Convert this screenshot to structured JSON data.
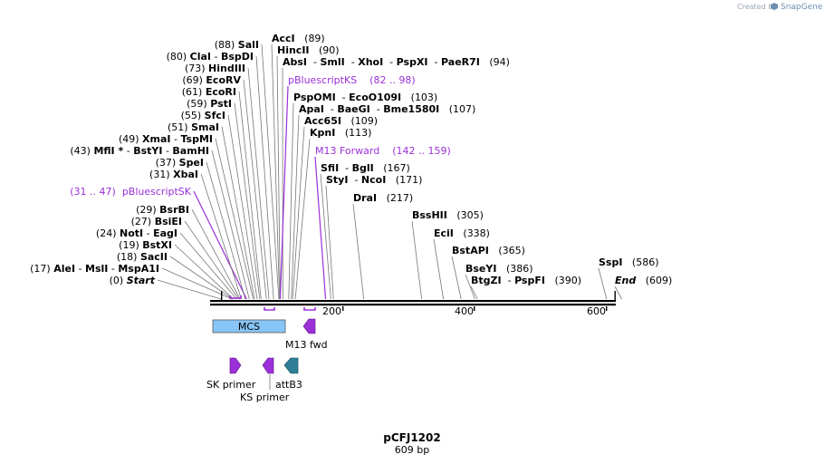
{
  "branding": {
    "created_by": "Created by",
    "app": "SnapGene"
  },
  "plasmid": {
    "name": "pCFJ1202",
    "length_label": "609 bp"
  },
  "colors": {
    "site_line": "#777777",
    "primer_purple": "#9b30d9",
    "mcs_fill": "#88c5f7",
    "attb_teal": "#2e7f97",
    "backbone": "#000000"
  },
  "ruler_ticks": [
    "200",
    "400",
    "600"
  ],
  "labels": [
    {
      "id": "l0",
      "pos": 0,
      "parts": [
        {
          "t": "(0) ",
          "s": "n"
        },
        {
          "t": "Start",
          "s": "bi"
        }
      ]
    },
    {
      "id": "l1",
      "pos": 17,
      "parts": [
        {
          "t": "(17) ",
          "s": "n"
        },
        {
          "t": "AleI",
          "s": "b"
        },
        {
          "t": " - ",
          "s": "n"
        },
        {
          "t": "MslI",
          "s": "b"
        },
        {
          "t": " - ",
          "s": "n"
        },
        {
          "t": "MspA1I",
          "s": "b"
        }
      ]
    },
    {
      "id": "l2",
      "pos": 18,
      "parts": [
        {
          "t": "(18) ",
          "s": "n"
        },
        {
          "t": "SacII",
          "s": "b"
        }
      ]
    },
    {
      "id": "l3",
      "pos": 19,
      "parts": [
        {
          "t": "(19) ",
          "s": "n"
        },
        {
          "t": "BstXI",
          "s": "b"
        }
      ]
    },
    {
      "id": "l4",
      "pos": 24,
      "parts": [
        {
          "t": "(24) ",
          "s": "n"
        },
        {
          "t": "NotI",
          "s": "b"
        },
        {
          "t": " - ",
          "s": "n"
        },
        {
          "t": "EagI",
          "s": "b"
        }
      ]
    },
    {
      "id": "l5",
      "pos": 27,
      "parts": [
        {
          "t": "(27) ",
          "s": "n"
        },
        {
          "t": "BsiEI",
          "s": "b"
        }
      ]
    },
    {
      "id": "l6",
      "pos": 29,
      "parts": [
        {
          "t": "(29) ",
          "s": "n"
        },
        {
          "t": "BsrBI",
          "s": "b"
        }
      ]
    },
    {
      "id": "l7",
      "pos": 39,
      "purple": true,
      "parts": [
        {
          "t": "(31 .. 47)  pBluescriptSK",
          "s": "p"
        }
      ]
    },
    {
      "id": "l8",
      "pos": 31,
      "parts": [
        {
          "t": "(31) ",
          "s": "n"
        },
        {
          "t": "XbaI",
          "s": "b"
        }
      ]
    },
    {
      "id": "l9",
      "pos": 37,
      "parts": [
        {
          "t": "(37) ",
          "s": "n"
        },
        {
          "t": "SpeI",
          "s": "b"
        }
      ]
    },
    {
      "id": "l10",
      "pos": 43,
      "parts": [
        {
          "t": "(43) ",
          "s": "n"
        },
        {
          "t": "MflI *",
          "s": "b"
        },
        {
          "t": " - ",
          "s": "n"
        },
        {
          "t": "BstYI",
          "s": "b"
        },
        {
          "t": " - ",
          "s": "n"
        },
        {
          "t": "BamHI",
          "s": "b"
        }
      ]
    },
    {
      "id": "l11",
      "pos": 49,
      "parts": [
        {
          "t": "(49) ",
          "s": "n"
        },
        {
          "t": "XmaI",
          "s": "b"
        },
        {
          "t": " - ",
          "s": "n"
        },
        {
          "t": "TspMI",
          "s": "b"
        }
      ]
    },
    {
      "id": "l12",
      "pos": 51,
      "parts": [
        {
          "t": "(51) ",
          "s": "n"
        },
        {
          "t": "SmaI",
          "s": "b"
        }
      ]
    },
    {
      "id": "l13",
      "pos": 55,
      "parts": [
        {
          "t": "(55) ",
          "s": "n"
        },
        {
          "t": "SfcI",
          "s": "b"
        }
      ]
    },
    {
      "id": "l14",
      "pos": 59,
      "parts": [
        {
          "t": "(59) ",
          "s": "n"
        },
        {
          "t": "PstI",
          "s": "b"
        }
      ]
    },
    {
      "id": "l15",
      "pos": 61,
      "parts": [
        {
          "t": "(61) ",
          "s": "n"
        },
        {
          "t": "EcoRI",
          "s": "b"
        }
      ]
    },
    {
      "id": "l16",
      "pos": 69,
      "parts": [
        {
          "t": "(69) ",
          "s": "n"
        },
        {
          "t": "EcoRV",
          "s": "b"
        }
      ]
    },
    {
      "id": "l17",
      "pos": 73,
      "parts": [
        {
          "t": "(73) ",
          "s": "n"
        },
        {
          "t": "HindIII",
          "s": "b"
        }
      ]
    },
    {
      "id": "l18",
      "pos": 80,
      "parts": [
        {
          "t": "(80) ",
          "s": "n"
        },
        {
          "t": "ClaI",
          "s": "b"
        },
        {
          "t": " - ",
          "s": "n"
        },
        {
          "t": "BspDI",
          "s": "b"
        }
      ]
    },
    {
      "id": "l19",
      "pos": 88,
      "parts": [
        {
          "t": "(88) ",
          "s": "n"
        },
        {
          "t": "SalI",
          "s": "b"
        }
      ]
    },
    {
      "id": "l20",
      "pos": 89,
      "parts": [
        {
          "t": "AccI",
          "s": "b"
        },
        {
          "t": "   (89)",
          "s": "n"
        }
      ]
    },
    {
      "id": "l21",
      "pos": 90,
      "parts": [
        {
          "t": "HincII",
          "s": "b"
        },
        {
          "t": "   (90)",
          "s": "n"
        }
      ]
    },
    {
      "id": "l22",
      "pos": 94,
      "parts": [
        {
          "t": "AbsI",
          "s": "b"
        },
        {
          "t": "  - ",
          "s": "n"
        },
        {
          "t": "SmlI",
          "s": "b"
        },
        {
          "t": "  - ",
          "s": "n"
        },
        {
          "t": "XhoI",
          "s": "b"
        },
        {
          "t": "  - ",
          "s": "n"
        },
        {
          "t": "PspXI",
          "s": "b"
        },
        {
          "t": "  - ",
          "s": "n"
        },
        {
          "t": "PaeR7I",
          "s": "b"
        },
        {
          "t": "   (94)",
          "s": "n"
        }
      ]
    },
    {
      "id": "l23",
      "pos": 90,
      "purple": true,
      "parts": [
        {
          "t": "pBluescriptKS    (82 .. 98)",
          "s": "p"
        }
      ]
    },
    {
      "id": "l24",
      "pos": 103,
      "parts": [
        {
          "t": "PspOMI",
          "s": "b"
        },
        {
          "t": "  - ",
          "s": "n"
        },
        {
          "t": "EcoO109I",
          "s": "b"
        },
        {
          "t": "   (103)",
          "s": "n"
        }
      ]
    },
    {
      "id": "l25",
      "pos": 107,
      "parts": [
        {
          "t": "ApaI",
          "s": "b"
        },
        {
          "t": "  - ",
          "s": "n"
        },
        {
          "t": "BaeGI",
          "s": "b"
        },
        {
          "t": "  - ",
          "s": "n"
        },
        {
          "t": "Bme1580I",
          "s": "b"
        },
        {
          "t": "   (107)",
          "s": "n"
        }
      ]
    },
    {
      "id": "l26",
      "pos": 109,
      "parts": [
        {
          "t": "Acc65I",
          "s": "b"
        },
        {
          "t": "   (109)",
          "s": "n"
        }
      ]
    },
    {
      "id": "l27",
      "pos": 113,
      "parts": [
        {
          "t": "KpnI",
          "s": "b"
        },
        {
          "t": "   (113)",
          "s": "n"
        }
      ]
    },
    {
      "id": "l28",
      "pos": 159,
      "purple": true,
      "parts": [
        {
          "t": "M13 Forward    (142 .. 159)",
          "s": "p"
        }
      ]
    },
    {
      "id": "l29",
      "pos": 167,
      "parts": [
        {
          "t": "SfiI",
          "s": "b"
        },
        {
          "t": "  - ",
          "s": "n"
        },
        {
          "t": "BglI",
          "s": "b"
        },
        {
          "t": "   (167)",
          "s": "n"
        }
      ]
    },
    {
      "id": "l30",
      "pos": 171,
      "parts": [
        {
          "t": "StyI",
          "s": "b"
        },
        {
          "t": "  - ",
          "s": "n"
        },
        {
          "t": "NcoI",
          "s": "b"
        },
        {
          "t": "   (171)",
          "s": "n"
        }
      ]
    },
    {
      "id": "l31",
      "pos": 217,
      "parts": [
        {
          "t": "DraI",
          "s": "b"
        },
        {
          "t": "   (217)",
          "s": "n"
        }
      ]
    },
    {
      "id": "l32",
      "pos": 305,
      "parts": [
        {
          "t": "BssHII",
          "s": "b"
        },
        {
          "t": "   (305)",
          "s": "n"
        }
      ]
    },
    {
      "id": "l33",
      "pos": 338,
      "parts": [
        {
          "t": "EciI",
          "s": "b"
        },
        {
          "t": "   (338)",
          "s": "n"
        }
      ]
    },
    {
      "id": "l34",
      "pos": 365,
      "parts": [
        {
          "t": "BstAPI",
          "s": "b"
        },
        {
          "t": "   (365)",
          "s": "n"
        }
      ]
    },
    {
      "id": "l35",
      "pos": 386,
      "parts": [
        {
          "t": "BseYI",
          "s": "b"
        },
        {
          "t": "   (386)",
          "s": "n"
        }
      ]
    },
    {
      "id": "l36",
      "pos": 390,
      "parts": [
        {
          "t": "BtgZI",
          "s": "b"
        },
        {
          "t": "  - ",
          "s": "n"
        },
        {
          "t": "PspFI",
          "s": "b"
        },
        {
          "t": "   (390)",
          "s": "n"
        }
      ]
    },
    {
      "id": "l37",
      "pos": 586,
      "parts": [
        {
          "t": "SspI",
          "s": "b"
        },
        {
          "t": "   (586)",
          "s": "n"
        }
      ]
    },
    {
      "id": "l38",
      "pos": 609,
      "parts": [
        {
          "t": "End",
          "s": "bi"
        },
        {
          "t": "   (609)",
          "s": "n"
        }
      ]
    }
  ],
  "features": {
    "mcs": {
      "label": "MCS",
      "start": 5,
      "end": 116
    },
    "m13_fwd": {
      "label": "M13 fwd",
      "start": 142,
      "end": 159
    },
    "sk_primer": {
      "label": "SK primer"
    },
    "ks_primer": {
      "label": "KS primer"
    },
    "attb3": {
      "label": "attB3"
    }
  },
  "primer_marks": [
    {
      "start": 31,
      "end": 47
    },
    {
      "start": 82,
      "end": 98
    },
    {
      "start": 142,
      "end": 159
    }
  ]
}
